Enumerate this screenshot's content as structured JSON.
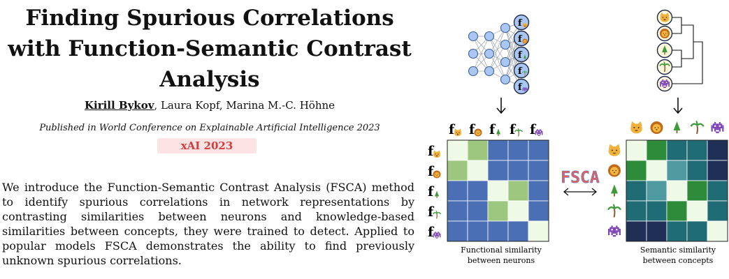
{
  "paper": {
    "title_lines": [
      "Finding Spurious Correlations",
      "with Function-Semantic Contrast",
      "Analysis"
    ],
    "authors": {
      "first": "Kirill Bykov",
      "rest": ", Laura Kopf, Marina M.-C. Höhne"
    },
    "venue": "Published in World Conference on Explainable Artificial Intelligence 2023",
    "badge": "xAI 2023",
    "abstract": "We introduce the Function-Semantic Contrast Analysis (FSCA) method to identify spurious correlations in network representations by contrasting similarities between neurons and knowledge-based similarities between concepts, they were trained to detect. Applied to popular models FSCA demonstrates the ability to find previously unknown spurious correlations."
  },
  "figure": {
    "function_symbol": "f",
    "concept_icons": [
      "cat-face",
      "lion-face",
      "evergreen-tree",
      "palm-tree",
      "space-invader"
    ],
    "method_label": "FSCA",
    "functional_matrix": [
      [
        "self",
        "mid",
        "low",
        "low",
        "low"
      ],
      [
        "mid",
        "self",
        "low",
        "low",
        "low"
      ],
      [
        "low",
        "low",
        "self",
        "mid",
        "low"
      ],
      [
        "low",
        "low",
        "mid",
        "self",
        "low"
      ],
      [
        "low",
        "low",
        "low",
        "low",
        "self"
      ]
    ],
    "semantic_matrix": [
      [
        "self",
        "high",
        "mid",
        "mid",
        "low"
      ],
      [
        "high",
        "self",
        "light",
        "mid",
        "low"
      ],
      [
        "mid",
        "light",
        "self",
        "high",
        "mid"
      ],
      [
        "mid",
        "mid",
        "high",
        "self",
        "mid"
      ],
      [
        "low",
        "low",
        "mid",
        "mid",
        "self"
      ]
    ],
    "functional_colors": {
      "self": "#eef9e6",
      "mid": "#9dc77f",
      "low": "#4a6fb5"
    },
    "semantic_colors": {
      "self": "#eef9e6",
      "high": "#2e8b3a",
      "light": "#4f9aa0",
      "mid": "#1f6c75",
      "low": "#1f2f55"
    },
    "captions": {
      "functional": [
        "Functional similarity",
        "between neurons"
      ],
      "semantic": [
        "Semantic similarity",
        "between concepts"
      ]
    }
  }
}
